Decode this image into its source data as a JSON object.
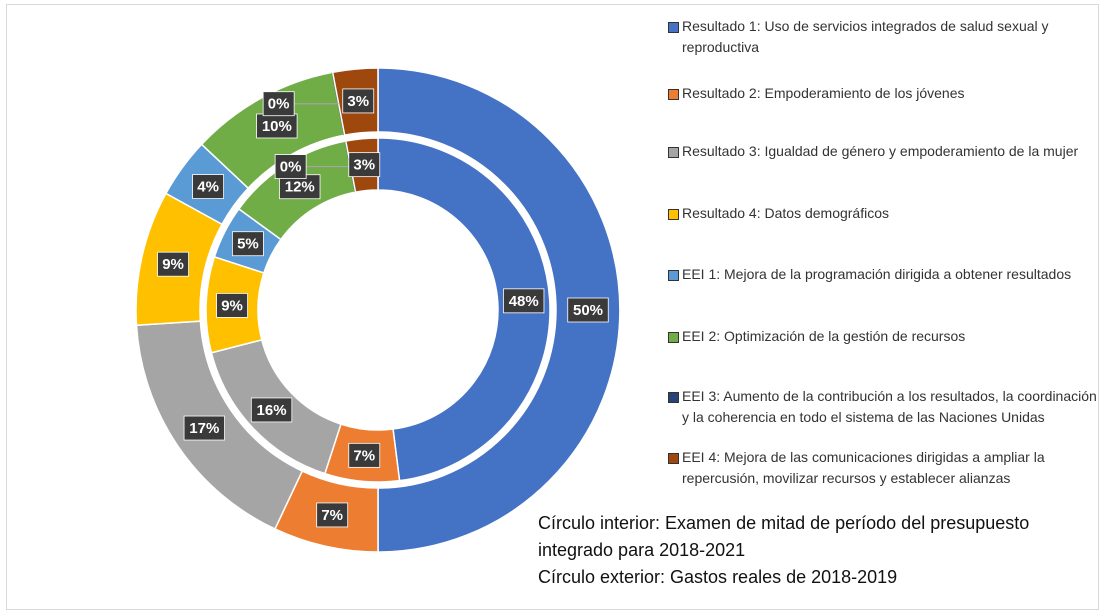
{
  "chart_data": {
    "type": "donut",
    "categories": [
      "Resultado 1: Uso de servicios integrados de salud sexual y reproductiva",
      "Resultado 2: Empoderamiento de los jóvenes",
      "Resultado 3: Igualdad de género y empoderamiento de la mujer",
      "Resultado 4: Datos demográficos",
      "EEI 1: Mejora de la programación dirigida a obtener resultados",
      "EEI 2: Optimización de la gestión de recursos",
      "EEI 3: Aumento de la contribución a los resultados, la coordinación y la coherencia en todo el sistema de las Naciones Unidas",
      "EEI 4: Mejora de las comunicaciones dirigidas a ampliar la repercusión, movilizar recursos y establecer alianzas"
    ],
    "colors": [
      "#4472c4",
      "#ed7d31",
      "#a5a5a5",
      "#ffc000",
      "#5b9bd5",
      "#70ad47",
      "#264478",
      "#9e480e"
    ],
    "series": [
      {
        "values": [
          48,
          7,
          16,
          9,
          5,
          12,
          0,
          3
        ],
        "value_labels": [
          "48%",
          "7%",
          "16%",
          "9%",
          "5%",
          "12%",
          "0%",
          "3%"
        ]
      },
      {
        "values": [
          50,
          7,
          17,
          9,
          4,
          10,
          0,
          3
        ],
        "value_labels": [
          "50%",
          "7%",
          "17%",
          "9%",
          "4%",
          "10%",
          "0%",
          "3%"
        ]
      }
    ],
    "notes": [
      "Círculo interior: Examen de mitad de período del presupuesto integrado para 2018-2021",
      "Círculo exterior: Gastos reales de 2018-2019"
    ]
  }
}
